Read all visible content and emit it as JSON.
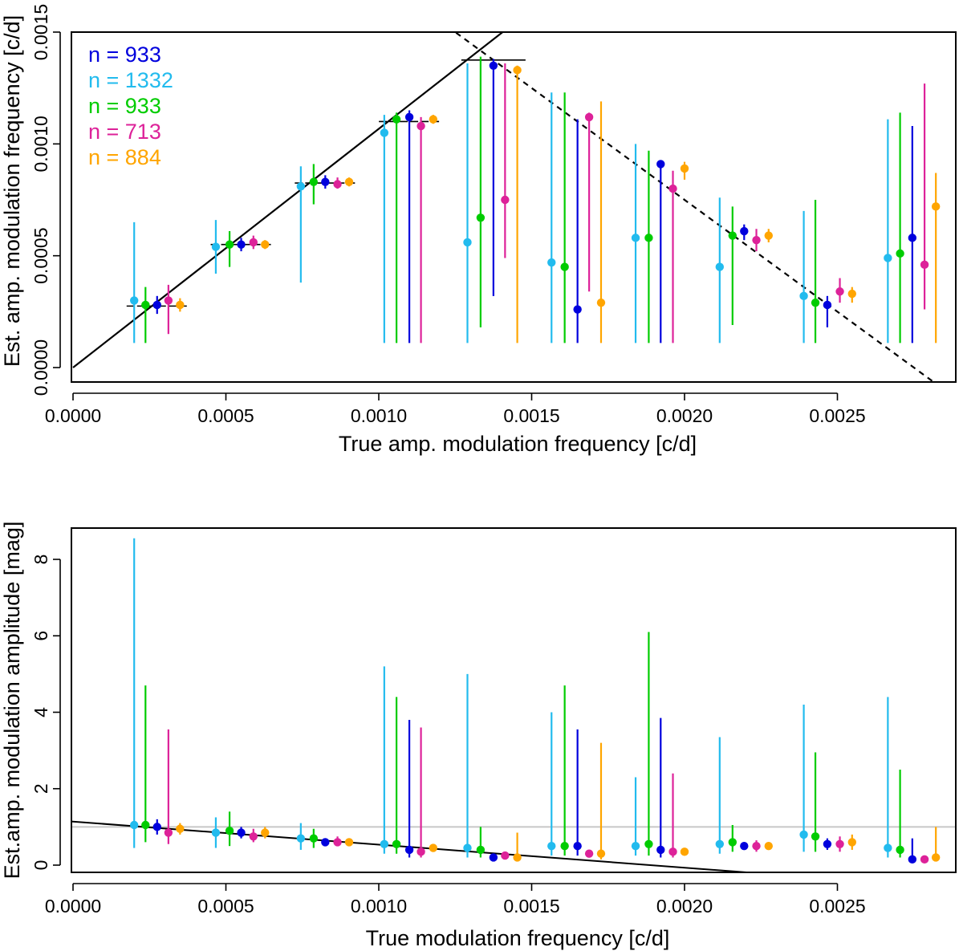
{
  "chart_data": [
    {
      "type": "scatter",
      "title": "",
      "xlabel": "True amp. modulation frequency [c/d]",
      "ylabel": "Est. amp. modulation frequency [c/d]",
      "xlim": [
        0,
        0.00285
      ],
      "ylim": [
        0,
        0.0015
      ],
      "xticks": [
        0,
        0.0005,
        0.001,
        0.0015,
        0.002,
        0.0025
      ],
      "xtick_labels": [
        "0.0000",
        "0.0005",
        "0.0010",
        "0.0015",
        "0.0020",
        "0.0025"
      ],
      "yticks": [
        0,
        0.0005,
        0.001,
        0.0015
      ],
      "ytick_labels": [
        "0.0000",
        "0.0005",
        "0.0010",
        "0.0015"
      ],
      "legend": [
        {
          "label": "n = 933",
          "color": "#0000dd"
        },
        {
          "label": "n = 1332",
          "color": "#22bbee"
        },
        {
          "label": "n = 933",
          "color": "#00cc00"
        },
        {
          "label": "n = 713",
          "color": "#dd2299"
        },
        {
          "label": "n = 884",
          "color": "#ffa500"
        }
      ],
      "legend_position": "top-left",
      "reference_lines": [
        {
          "style": "solid",
          "from": [
            0,
            0
          ],
          "to": [
            0.00148,
            0.00158
          ]
        },
        {
          "style": "dashed",
          "from": [
            0.00117,
            0.00158
          ],
          "to": [
            0.00281,
            -6e-05
          ]
        }
      ],
      "true_values": [
        {
          "x": 0.000275,
          "y": 0.000275
        },
        {
          "x": 0.00055,
          "y": 0.00055
        },
        {
          "x": 0.000825,
          "y": 0.000825
        },
        {
          "x": 0.0011,
          "y": 0.0011
        },
        {
          "x": 0.001375,
          "y": 0.001375
        }
      ],
      "series": [
        {
          "name": "n = 1332",
          "color": "#22bbee",
          "points": [
            {
              "x": 0.0002,
              "y": 0.0003,
              "lo": 0.00011,
              "hi": 0.00065
            },
            {
              "x": 0.000467,
              "y": 0.00054,
              "lo": 0.00042,
              "hi": 0.00066
            },
            {
              "x": 0.000745,
              "y": 0.00081,
              "lo": 0.00038,
              "hi": 0.0009
            },
            {
              "x": 0.001018,
              "y": 0.00105,
              "lo": 0.00011,
              "hi": 0.00113
            },
            {
              "x": 0.00129,
              "y": 0.00056,
              "lo": 0.00011,
              "hi": 0.00136
            },
            {
              "x": 0.001565,
              "y": 0.00047,
              "lo": 0.00011,
              "hi": 0.00123
            },
            {
              "x": 0.00184,
              "y": 0.00058,
              "lo": 0.00011,
              "hi": 0.001
            },
            {
              "x": 0.002115,
              "y": 0.00045,
              "lo": 0.00011,
              "hi": 0.00076
            },
            {
              "x": 0.00239,
              "y": 0.00032,
              "lo": 0.00011,
              "hi": 0.0007
            },
            {
              "x": 0.002665,
              "y": 0.00049,
              "lo": 0.00011,
              "hi": 0.00111
            }
          ]
        },
        {
          "name": "n = 933",
          "color": "#00cc00",
          "points": [
            {
              "x": 0.000237,
              "y": 0.00028,
              "lo": 0.00011,
              "hi": 0.00036
            },
            {
              "x": 0.000512,
              "y": 0.00055,
              "lo": 0.00045,
              "hi": 0.00061
            },
            {
              "x": 0.000787,
              "y": 0.00083,
              "lo": 0.00073,
              "hi": 0.00091
            },
            {
              "x": 0.001058,
              "y": 0.00111,
              "lo": 0.00011,
              "hi": 0.00114
            },
            {
              "x": 0.001333,
              "y": 0.00067,
              "lo": 0.00018,
              "hi": 0.00139
            },
            {
              "x": 0.001608,
              "y": 0.00045,
              "lo": 0.00011,
              "hi": 0.00123
            },
            {
              "x": 0.001883,
              "y": 0.00058,
              "lo": 0.00011,
              "hi": 0.00097
            },
            {
              "x": 0.002157,
              "y": 0.00059,
              "lo": 0.00019,
              "hi": 0.00072
            },
            {
              "x": 0.002428,
              "y": 0.00029,
              "lo": 0.00011,
              "hi": 0.00075
            },
            {
              "x": 0.002705,
              "y": 0.00051,
              "lo": 0.00011,
              "hi": 0.00114
            }
          ]
        },
        {
          "name": "n = 933",
          "color": "#0000dd",
          "points": [
            {
              "x": 0.000275,
              "y": 0.00028,
              "lo": 0.00024,
              "hi": 0.00032
            },
            {
              "x": 0.00055,
              "y": 0.00055,
              "lo": 0.00052,
              "hi": 0.00058
            },
            {
              "x": 0.000825,
              "y": 0.00083,
              "lo": 0.0008,
              "hi": 0.00086
            },
            {
              "x": 0.0011,
              "y": 0.00112,
              "lo": 0.00011,
              "hi": 0.00115
            },
            {
              "x": 0.001375,
              "y": 0.00135,
              "lo": 0.00032,
              "hi": 0.00138
            },
            {
              "x": 0.00165,
              "y": 0.00026,
              "lo": 0.00011,
              "hi": 0.00111
            },
            {
              "x": 0.001922,
              "y": 0.00091,
              "lo": 0.00011,
              "hi": 0.00092
            },
            {
              "x": 0.002195,
              "y": 0.00061,
              "lo": 0.00057,
              "hi": 0.00064
            },
            {
              "x": 0.002467,
              "y": 0.00028,
              "lo": 0.00018,
              "hi": 0.00032
            },
            {
              "x": 0.002745,
              "y": 0.00058,
              "lo": 0.00011,
              "hi": 0.00108
            }
          ]
        },
        {
          "name": "n = 713",
          "color": "#dd2299",
          "points": [
            {
              "x": 0.000312,
              "y": 0.0003,
              "lo": 0.00015,
              "hi": 0.00037
            },
            {
              "x": 0.00059,
              "y": 0.00056,
              "lo": 0.00053,
              "hi": 0.00059
            },
            {
              "x": 0.000865,
              "y": 0.00082,
              "lo": 0.0008,
              "hi": 0.00085
            },
            {
              "x": 0.001138,
              "y": 0.00108,
              "lo": 0.00011,
              "hi": 0.00112
            },
            {
              "x": 0.001413,
              "y": 0.00075,
              "lo": 0.00049,
              "hi": 0.00136
            },
            {
              "x": 0.001688,
              "y": 0.00112,
              "lo": 0.00034,
              "hi": 0.00114
            },
            {
              "x": 0.001962,
              "y": 0.0008,
              "lo": 0.00011,
              "hi": 0.00088
            },
            {
              "x": 0.002235,
              "y": 0.00057,
              "lo": 0.00052,
              "hi": 0.00062
            },
            {
              "x": 0.002508,
              "y": 0.00034,
              "lo": 0.00029,
              "hi": 0.0004
            },
            {
              "x": 0.002785,
              "y": 0.00046,
              "lo": 0.00026,
              "hi": 0.00127
            }
          ]
        },
        {
          "name": "n = 884",
          "color": "#ffa500",
          "points": [
            {
              "x": 0.00035,
              "y": 0.00028,
              "lo": 0.00025,
              "hi": 0.00031
            },
            {
              "x": 0.000628,
              "y": 0.00055,
              "lo": 0.00053,
              "hi": 0.00057
            },
            {
              "x": 0.000903,
              "y": 0.00083,
              "lo": 0.00081,
              "hi": 0.00085
            },
            {
              "x": 0.001178,
              "y": 0.00111,
              "lo": 0.00109,
              "hi": 0.00113
            },
            {
              "x": 0.001453,
              "y": 0.00133,
              "lo": 0.00011,
              "hi": 0.00135
            },
            {
              "x": 0.001727,
              "y": 0.00029,
              "lo": 0.00011,
              "hi": 0.00119
            },
            {
              "x": 0.002,
              "y": 0.00089,
              "lo": 0.00084,
              "hi": 0.00092
            },
            {
              "x": 0.002275,
              "y": 0.00059,
              "lo": 0.00056,
              "hi": 0.00062
            },
            {
              "x": 0.002548,
              "y": 0.00033,
              "lo": 0.00029,
              "hi": 0.00036
            },
            {
              "x": 0.002822,
              "y": 0.00072,
              "lo": 0.00011,
              "hi": 0.00087
            }
          ]
        }
      ]
    },
    {
      "type": "scatter",
      "title": "",
      "xlabel": "True modulation frequency [c/d]",
      "ylabel": "Est.amp. modulation amplitude [mag]",
      "xlim": [
        0,
        0.00285
      ],
      "ylim": [
        -0.2,
        8.4
      ],
      "xticks": [
        0,
        0.0005,
        0.001,
        0.0015,
        0.002,
        0.0025
      ],
      "xtick_labels": [
        "0.0000",
        "0.0005",
        "0.0010",
        "0.0015",
        "0.0020",
        "0.0025"
      ],
      "yticks": [
        0,
        2,
        4,
        6,
        8
      ],
      "ytick_labels": [
        "0",
        "2",
        "4",
        "6",
        "8"
      ],
      "reference_lines": [
        {
          "style": "solid",
          "color": "#c8c8c8",
          "from": [
            -0.0001,
            1.0
          ],
          "to": [
            0.0029,
            1.0
          ]
        },
        {
          "style": "solid",
          "color": "#000000",
          "from": [
            -0.0001,
            1.2
          ],
          "to": [
            0.00222,
            -0.2
          ]
        }
      ],
      "series": [
        {
          "name": "n = 1332",
          "color": "#22bbee",
          "points": [
            {
              "x": 0.0002,
              "y": 1.05,
              "lo": 0.45,
              "hi": 8.55
            },
            {
              "x": 0.000467,
              "y": 0.85,
              "lo": 0.45,
              "hi": 1.25
            },
            {
              "x": 0.000745,
              "y": 0.7,
              "lo": 0.4,
              "hi": 1.1
            },
            {
              "x": 0.001018,
              "y": 0.55,
              "lo": 0.3,
              "hi": 5.2
            },
            {
              "x": 0.00129,
              "y": 0.45,
              "lo": 0.2,
              "hi": 5.0
            },
            {
              "x": 0.001565,
              "y": 0.5,
              "lo": 0.25,
              "hi": 4.0
            },
            {
              "x": 0.00184,
              "y": 0.5,
              "lo": 0.25,
              "hi": 2.3
            },
            {
              "x": 0.002115,
              "y": 0.55,
              "lo": 0.3,
              "hi": 3.35
            },
            {
              "x": 0.00239,
              "y": 0.8,
              "lo": 0.35,
              "hi": 4.2
            },
            {
              "x": 0.002665,
              "y": 0.45,
              "lo": 0.2,
              "hi": 4.4
            }
          ]
        },
        {
          "name": "n = 933",
          "color": "#00cc00",
          "points": [
            {
              "x": 0.000237,
              "y": 1.05,
              "lo": 0.6,
              "hi": 4.7
            },
            {
              "x": 0.000512,
              "y": 0.9,
              "lo": 0.5,
              "hi": 1.4
            },
            {
              "x": 0.000787,
              "y": 0.7,
              "lo": 0.45,
              "hi": 0.95
            },
            {
              "x": 0.001058,
              "y": 0.55,
              "lo": 0.3,
              "hi": 4.4
            },
            {
              "x": 0.001333,
              "y": 0.4,
              "lo": 0.2,
              "hi": 1.0
            },
            {
              "x": 0.001608,
              "y": 0.5,
              "lo": 0.25,
              "hi": 4.7
            },
            {
              "x": 0.001883,
              "y": 0.55,
              "lo": 0.25,
              "hi": 6.1
            },
            {
              "x": 0.002157,
              "y": 0.6,
              "lo": 0.35,
              "hi": 1.05
            },
            {
              "x": 0.002428,
              "y": 0.75,
              "lo": 0.35,
              "hi": 2.95
            },
            {
              "x": 0.002705,
              "y": 0.4,
              "lo": 0.2,
              "hi": 2.5
            }
          ]
        },
        {
          "name": "n = 933",
          "color": "#0000dd",
          "points": [
            {
              "x": 0.000275,
              "y": 1.0,
              "lo": 0.8,
              "hi": 1.2
            },
            {
              "x": 0.00055,
              "y": 0.85,
              "lo": 0.7,
              "hi": 1.0
            },
            {
              "x": 0.000825,
              "y": 0.6,
              "lo": 0.5,
              "hi": 0.7
            },
            {
              "x": 0.0011,
              "y": 0.4,
              "lo": 0.2,
              "hi": 3.8
            },
            {
              "x": 0.001375,
              "y": 0.2,
              "lo": 0.15,
              "hi": 0.3
            },
            {
              "x": 0.00165,
              "y": 0.5,
              "lo": 0.25,
              "hi": 3.55
            },
            {
              "x": 0.001922,
              "y": 0.4,
              "lo": 0.2,
              "hi": 3.85
            },
            {
              "x": 0.002195,
              "y": 0.5,
              "lo": 0.4,
              "hi": 0.6
            },
            {
              "x": 0.002467,
              "y": 0.55,
              "lo": 0.4,
              "hi": 0.7
            },
            {
              "x": 0.002745,
              "y": 0.15,
              "lo": 0.1,
              "hi": 0.7
            }
          ]
        },
        {
          "name": "n = 713",
          "color": "#dd2299",
          "points": [
            {
              "x": 0.000312,
              "y": 0.85,
              "lo": 0.55,
              "hi": 3.55
            },
            {
              "x": 0.00059,
              "y": 0.75,
              "lo": 0.6,
              "hi": 0.95
            },
            {
              "x": 0.000865,
              "y": 0.6,
              "lo": 0.5,
              "hi": 0.75
            },
            {
              "x": 0.001138,
              "y": 0.35,
              "lo": 0.2,
              "hi": 3.6
            },
            {
              "x": 0.001413,
              "y": 0.25,
              "lo": 0.2,
              "hi": 0.3
            },
            {
              "x": 0.001688,
              "y": 0.3,
              "lo": 0.2,
              "hi": 0.4
            },
            {
              "x": 0.001962,
              "y": 0.35,
              "lo": 0.2,
              "hi": 2.4
            },
            {
              "x": 0.002235,
              "y": 0.5,
              "lo": 0.35,
              "hi": 0.65
            },
            {
              "x": 0.002508,
              "y": 0.55,
              "lo": 0.35,
              "hi": 0.75
            },
            {
              "x": 0.002785,
              "y": 0.15,
              "lo": 0.1,
              "hi": 0.2
            }
          ]
        },
        {
          "name": "n = 884",
          "color": "#ffa500",
          "points": [
            {
              "x": 0.00035,
              "y": 0.95,
              "lo": 0.8,
              "hi": 1.1
            },
            {
              "x": 0.000628,
              "y": 0.85,
              "lo": 0.7,
              "hi": 1.0
            },
            {
              "x": 0.000903,
              "y": 0.6,
              "lo": 0.5,
              "hi": 0.7
            },
            {
              "x": 0.001178,
              "y": 0.45,
              "lo": 0.35,
              "hi": 0.55
            },
            {
              "x": 0.001453,
              "y": 0.2,
              "lo": 0.1,
              "hi": 0.85
            },
            {
              "x": 0.001727,
              "y": 0.3,
              "lo": 0.15,
              "hi": 3.2
            },
            {
              "x": 0.002,
              "y": 0.35,
              "lo": 0.25,
              "hi": 0.45
            },
            {
              "x": 0.002275,
              "y": 0.5,
              "lo": 0.4,
              "hi": 0.6
            },
            {
              "x": 0.002548,
              "y": 0.6,
              "lo": 0.4,
              "hi": 0.8
            },
            {
              "x": 0.002822,
              "y": 0.2,
              "lo": 0.1,
              "hi": 1.0
            }
          ]
        }
      ]
    }
  ]
}
